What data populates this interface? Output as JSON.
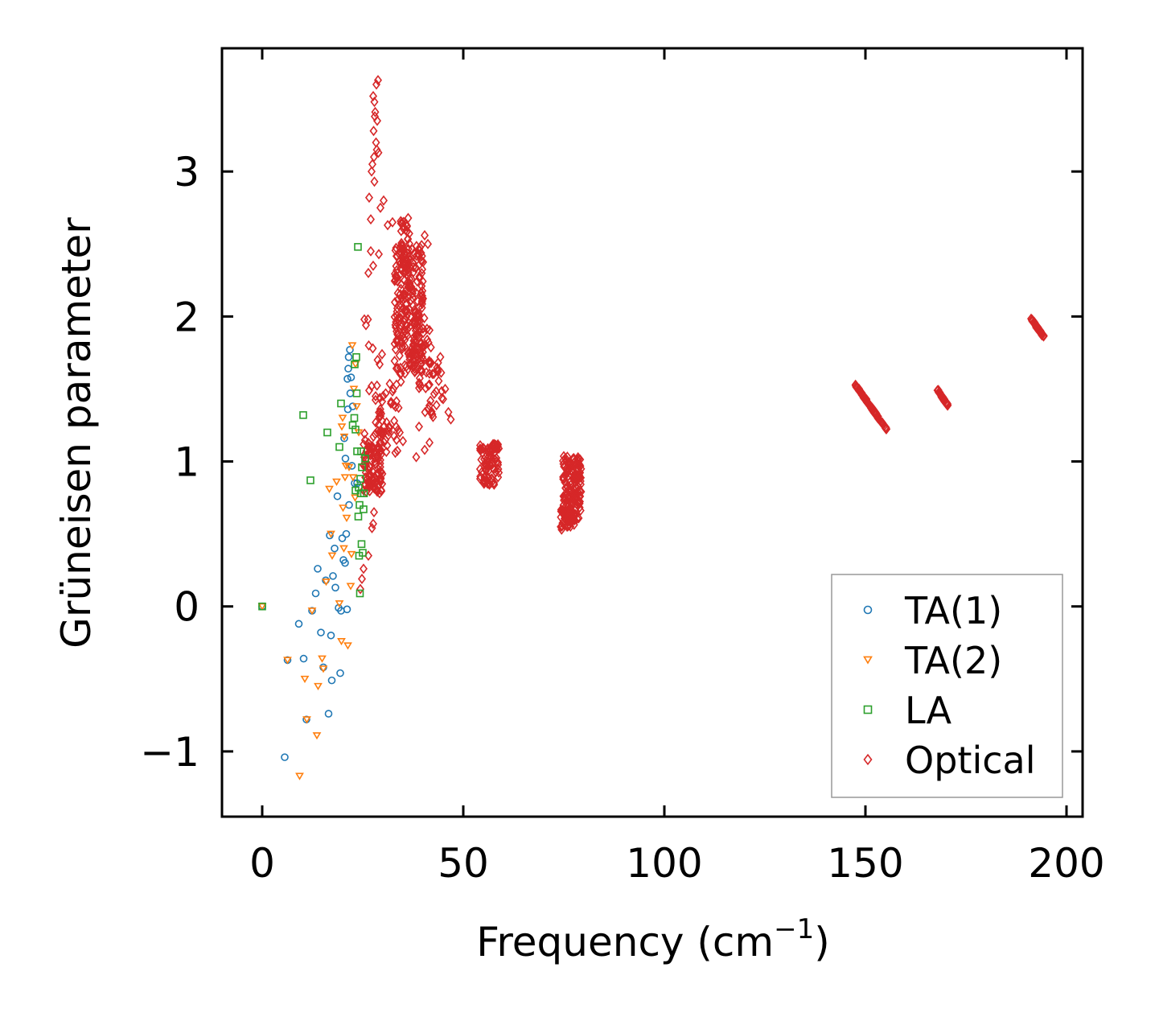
{
  "chart_data": {
    "type": "scatter",
    "title": "",
    "xlabel": "Frequency (cm",
    "xlabel_sup": "−1",
    "xlabel_end": ")",
    "ylabel": "Grüneisen parameter",
    "xlim": [
      -10,
      204
    ],
    "ylim": [
      -1.45,
      3.85
    ],
    "xticks": [
      0,
      50,
      100,
      150,
      200
    ],
    "yticks": [
      -1,
      0,
      1,
      2,
      3
    ],
    "xtick_labels": [
      "0",
      "50",
      "100",
      "150",
      "200"
    ],
    "ytick_labels": [
      "−1",
      "0",
      "1",
      "2",
      "3"
    ],
    "legend_position": "lower-right",
    "series": [
      {
        "name": "TA(1)",
        "marker": "circle",
        "color": "#1f77b4",
        "points": [
          [
            0,
            0
          ],
          [
            5.6,
            -1.04
          ],
          [
            6.3,
            -0.37
          ],
          [
            9.1,
            -0.12
          ],
          [
            10.3,
            -0.36
          ],
          [
            11,
            -0.78
          ],
          [
            12.4,
            -0.03
          ],
          [
            13.3,
            0.09
          ],
          [
            13.8,
            0.26
          ],
          [
            14.6,
            -0.18
          ],
          [
            15.2,
            -0.42
          ],
          [
            15.8,
            0.18
          ],
          [
            16.5,
            -0.74
          ],
          [
            16.8,
            0.49
          ],
          [
            17.1,
            -0.2
          ],
          [
            17.3,
            -0.51
          ],
          [
            17.6,
            0.21
          ],
          [
            18,
            0.4
          ],
          [
            18.2,
            0.13
          ],
          [
            18.7,
            0.76
          ],
          [
            19,
            -0.01
          ],
          [
            19.4,
            -0.46
          ],
          [
            19.6,
            -0.03
          ],
          [
            19.9,
            0.47
          ],
          [
            20.2,
            0.32
          ],
          [
            20.4,
            1.16
          ],
          [
            20.6,
            0.3
          ],
          [
            20.7,
            1.02
          ],
          [
            20.9,
            0.5
          ],
          [
            21.1,
            -0.02
          ],
          [
            21.2,
            1.57
          ],
          [
            21.3,
            1.36
          ],
          [
            21.4,
            1.64
          ],
          [
            21.5,
            1.72
          ],
          [
            21.6,
            0.7
          ],
          [
            21.8,
            1.77
          ],
          [
            21.9,
            1.47
          ],
          [
            22.1,
            1.58
          ],
          [
            22.3,
            0.97
          ],
          [
            22.5,
            1.38
          ],
          [
            23,
            0.85
          ],
          [
            23.6,
            0.85
          ]
        ]
      },
      {
        "name": "TA(2)",
        "marker": "triangle-down",
        "color": "#ff7f0e",
        "points": [
          [
            0,
            0
          ],
          [
            6.3,
            -0.37
          ],
          [
            9.3,
            -1.17
          ],
          [
            10.6,
            -0.5
          ],
          [
            11.1,
            -0.78
          ],
          [
            12.4,
            -0.03
          ],
          [
            13.6,
            -0.89
          ],
          [
            13.9,
            -0.55
          ],
          [
            14.9,
            -0.36
          ],
          [
            15.2,
            -0.43
          ],
          [
            15.9,
            0.17
          ],
          [
            16.7,
            0.81
          ],
          [
            17.1,
            0.5
          ],
          [
            17.4,
            0.35
          ],
          [
            18.5,
            0.86
          ],
          [
            19.2,
            0.02
          ],
          [
            19.7,
            -0.24
          ],
          [
            19.8,
            1.24
          ],
          [
            20,
            1.3
          ],
          [
            20.1,
            0.68
          ],
          [
            20.3,
            0.4
          ],
          [
            20.4,
            1.17
          ],
          [
            20.6,
            0.89
          ],
          [
            20.8,
            0.97
          ],
          [
            21,
            0.61
          ],
          [
            21.3,
            -0.27
          ],
          [
            21.6,
            0.96
          ],
          [
            22,
            0.14
          ],
          [
            22.2,
            0.36
          ],
          [
            22.4,
            1.8
          ],
          [
            22.6,
            0.89
          ],
          [
            22.8,
            1.5
          ],
          [
            23.1,
            0.75
          ],
          [
            23.2,
            1.67
          ],
          [
            23.5,
            1.38
          ],
          [
            24,
            1.2
          ]
        ]
      },
      {
        "name": "LA",
        "marker": "square",
        "color": "#2ca02c",
        "points": [
          [
            0,
            0
          ],
          [
            10.2,
            1.32
          ],
          [
            12,
            0.87
          ],
          [
            16.2,
            1.2
          ],
          [
            19.2,
            1.1
          ],
          [
            19.6,
            1.4
          ],
          [
            22.5,
            1.25
          ],
          [
            23,
            1.67
          ],
          [
            23.2,
            0.8
          ],
          [
            23.4,
            1.72
          ],
          [
            23.6,
            1.07
          ],
          [
            23.8,
            2.48
          ],
          [
            23.9,
            0.62
          ],
          [
            24.1,
            0.35
          ],
          [
            24.2,
            0.7
          ],
          [
            24.3,
            0.09
          ],
          [
            24.5,
            0.78
          ],
          [
            24.6,
            1.07
          ],
          [
            24.7,
            0.43
          ],
          [
            25,
            0.37
          ],
          [
            25.2,
            0.67
          ],
          [
            25.3,
            0.78
          ],
          [
            25.6,
            1.02
          ],
          [
            23.2,
            1.22
          ],
          [
            22.9,
            1.3
          ],
          [
            23.5,
            1.47
          ],
          [
            24.4,
            0.88
          ],
          [
            24.8,
            0.96
          ],
          [
            24,
            0.82
          ]
        ]
      },
      {
        "name": "Optical",
        "marker": "diamond",
        "color": "#d62728",
        "clusters": [
          {
            "x": 27.5,
            "y": 1.0,
            "dx": 2.4,
            "dy": 0.22,
            "count": 110
          },
          {
            "x": 36.5,
            "y": 2.05,
            "dx": 3.6,
            "dy": 0.45,
            "count": 230
          },
          {
            "x": 35.5,
            "y": 2.5,
            "dx": 1.3,
            "dy": 0.2,
            "count": 40
          },
          {
            "x": 39.5,
            "y": 1.75,
            "dx": 2.6,
            "dy": 0.25,
            "count": 50
          },
          {
            "x": 43.0,
            "y": 1.5,
            "dx": 2.2,
            "dy": 0.2,
            "count": 25
          },
          {
            "x": 31.0,
            "y": 1.3,
            "dx": 3.0,
            "dy": 0.25,
            "count": 40
          },
          {
            "x": 56.5,
            "y": 0.98,
            "dx": 2.4,
            "dy": 0.14,
            "count": 90
          },
          {
            "x": 77.0,
            "y": 0.82,
            "dx": 2.3,
            "dy": 0.22,
            "count": 150
          },
          {
            "x": 76.0,
            "y": 0.6,
            "dx": 1.8,
            "dy": 0.07,
            "count": 40
          },
          {
            "x": 151.5,
            "y": 1.37,
            "dx": 4.0,
            "dy": 0.01,
            "count": 80
          },
          {
            "x": 169.2,
            "y": 1.44,
            "dx": 1.3,
            "dy": 0.01,
            "count": 30
          },
          {
            "x": 192.8,
            "y": 1.92,
            "dx": 1.6,
            "dy": 0.01,
            "count": 40
          }
        ],
        "points": [
          [
            28.8,
            3.63
          ],
          [
            28.4,
            3.6
          ],
          [
            27.6,
            3.52
          ],
          [
            27.9,
            3.48
          ],
          [
            28.1,
            3.41
          ],
          [
            28,
            3.38
          ],
          [
            28.6,
            3.35
          ],
          [
            27.7,
            3.28
          ],
          [
            28.3,
            3.2
          ],
          [
            28.5,
            3.15
          ],
          [
            28.9,
            3.13
          ],
          [
            27.8,
            3.1
          ],
          [
            27.4,
            3.05
          ],
          [
            27.2,
            3.0
          ],
          [
            27.9,
            2.93
          ],
          [
            26.6,
            2.82
          ],
          [
            29.4,
            2.75
          ],
          [
            30.2,
            2.8
          ],
          [
            27,
            2.67
          ],
          [
            31.2,
            2.63
          ],
          [
            32.4,
            2.65
          ],
          [
            40.4,
            2.56
          ],
          [
            41.2,
            2.5
          ],
          [
            27,
            2.45
          ],
          [
            29,
            2.43
          ],
          [
            26.4,
            2.3
          ],
          [
            27.6,
            2.35
          ],
          [
            25.4,
            1.98
          ],
          [
            26.3,
            1.98
          ],
          [
            25.8,
            1.94
          ],
          [
            26.5,
            1.8
          ],
          [
            27.5,
            1.78
          ],
          [
            29.8,
            1.74
          ],
          [
            28.7,
            1.7
          ],
          [
            29.2,
            1.67
          ],
          [
            26.6,
            1.49
          ],
          [
            27.2,
            1.52
          ],
          [
            28.2,
            1.45
          ],
          [
            30.7,
            1.47
          ],
          [
            32.6,
            1.5
          ],
          [
            33.4,
            1.53
          ],
          [
            34.5,
            1.55
          ],
          [
            32,
            1.4
          ],
          [
            29.6,
            1.33
          ],
          [
            31.6,
            1.23
          ],
          [
            33.3,
            1.24
          ],
          [
            34.2,
            1.2
          ],
          [
            35,
            1.14
          ],
          [
            39,
            1.24
          ],
          [
            40.5,
            1.34
          ],
          [
            38.3,
            1.03
          ],
          [
            40.4,
            1.08
          ],
          [
            41.6,
            1.13
          ],
          [
            33.1,
            1.06
          ],
          [
            44.3,
            1.72
          ],
          [
            43.7,
            1.62
          ],
          [
            45.5,
            1.5
          ],
          [
            46.3,
            1.34
          ],
          [
            46.9,
            1.29
          ],
          [
            45,
            1.43
          ],
          [
            27.8,
            0.65
          ],
          [
            27.6,
            0.57
          ],
          [
            27.3,
            0.54
          ],
          [
            26.4,
            0.35
          ],
          [
            25.2,
            0.26
          ],
          [
            24.8,
            0.19
          ],
          [
            24.4,
            0.12
          ],
          [
            28.4,
            0.8
          ],
          [
            29.3,
            0.86
          ]
        ]
      }
    ]
  }
}
